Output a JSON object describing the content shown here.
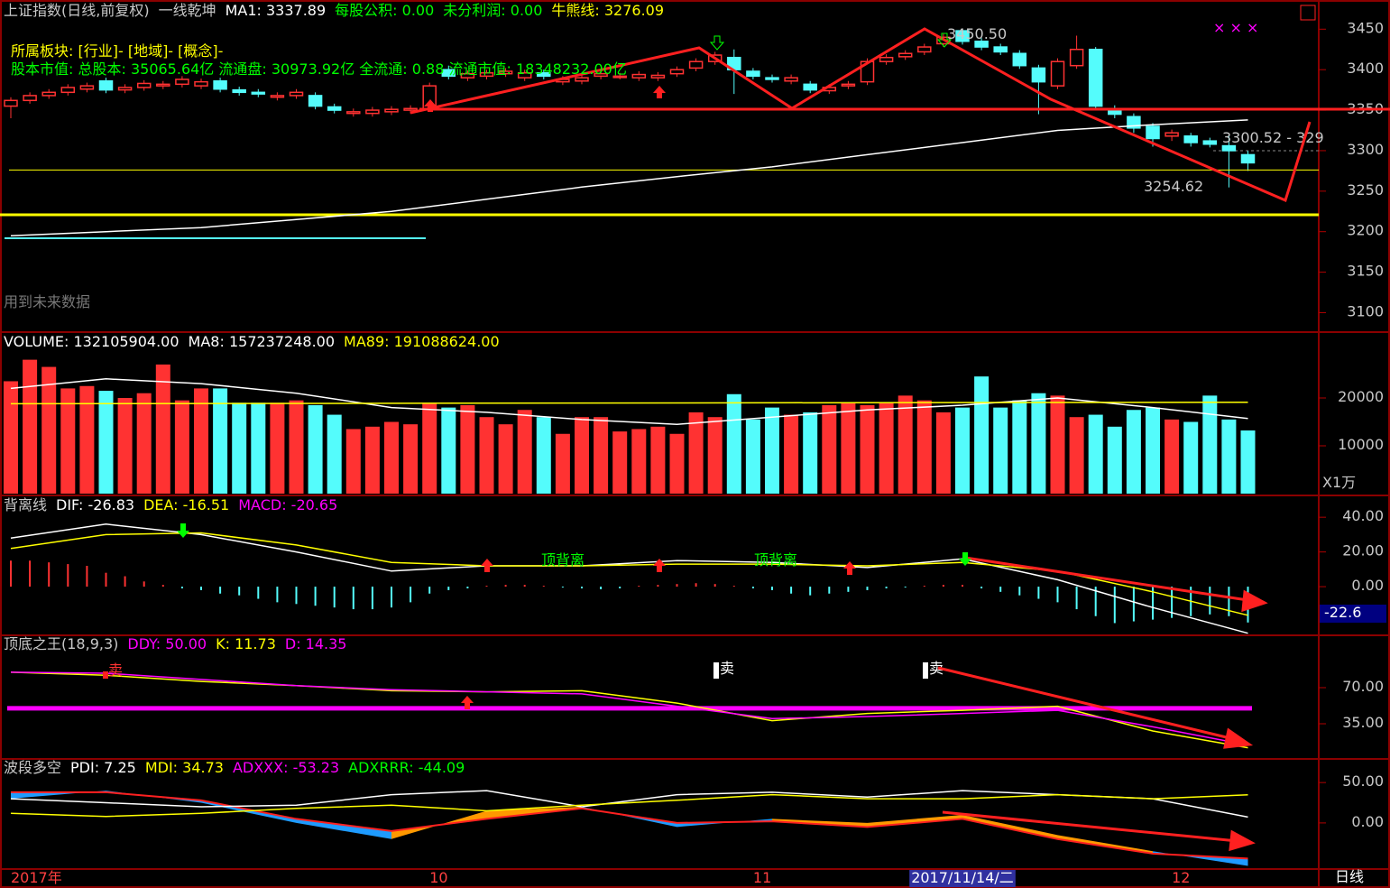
{
  "price_lines": [
    "所属板块: [行业]- [地域]- [概念]-",
    "股本市值: 总股本: 35065.64亿 流通盘: 30973.92亿 全流通: 0.88 流通市值: 18348232.00亿"
  ],
  "future_note": "用到未来数据",
  "footer": "日线",
  "chart_data": [
    {
      "type": "candlestick",
      "header": [
        {
          "text": "上证指数(日线,前复权)",
          "color": "#c8c8c8"
        },
        {
          "text": "一线乾坤",
          "color": "#c8c8c8"
        },
        {
          "text": "MA1: 3337.89",
          "color": "#ffffff"
        },
        {
          "text": "每股公积: 0.00",
          "color": "#00ff00"
        },
        {
          "text": "未分利润: 0.00",
          "color": "#00ff00"
        },
        {
          "text": "牛熊线: 3276.09",
          "color": "#ffff00"
        }
      ],
      "categories": [
        "2017年",
        null,
        null,
        null,
        null,
        null,
        null,
        null,
        null,
        null,
        null,
        null,
        null,
        null,
        null,
        null,
        null,
        null,
        null,
        null,
        null,
        null,
        "10",
        null,
        null,
        null,
        null,
        null,
        null,
        null,
        null,
        null,
        null,
        null,
        null,
        null,
        null,
        null,
        null,
        "11",
        null,
        null,
        null,
        null,
        null,
        null,
        null,
        null,
        null,
        null,
        "2017/11/14/二",
        null,
        null,
        null,
        null,
        null,
        null,
        null,
        null,
        null,
        null,
        "12",
        null,
        null,
        null,
        null
      ],
      "open": [
        3355,
        3362,
        3368,
        3372,
        3376,
        3386,
        3375,
        3378,
        3380,
        3382,
        3380,
        3386,
        3375,
        3372,
        3366,
        3368,
        3368,
        3354,
        3346,
        3346,
        3348,
        3350,
        3352,
        3400,
        3390,
        3392,
        3395,
        3390,
        3396,
        3385,
        3386,
        3392,
        3392,
        3390,
        3390,
        3395,
        3402,
        3410,
        3415,
        3398,
        3390,
        3386,
        3382,
        3374,
        3380,
        3385,
        3410,
        3416,
        3422,
        3432,
        3448,
        3435,
        3428,
        3420,
        3402,
        3380,
        3405,
        3425,
        3352,
        3342,
        3330,
        3318,
        3318,
        3312,
        3306,
        3295
      ],
      "high": [
        3366,
        3372,
        3376,
        3382,
        3384,
        3390,
        3382,
        3387,
        3386,
        3392,
        3389,
        3390,
        3379,
        3376,
        3372,
        3376,
        3372,
        3358,
        3352,
        3354,
        3355,
        3356,
        3384,
        3405,
        3399,
        3400,
        3402,
        3400,
        3400,
        3392,
        3394,
        3399,
        3396,
        3398,
        3397,
        3404,
        3414,
        3422,
        3425,
        3402,
        3394,
        3394,
        3386,
        3382,
        3386,
        3414,
        3419,
        3424,
        3432,
        3444,
        3450.5,
        3439,
        3432,
        3424,
        3406,
        3414,
        3442,
        3428,
        3356,
        3346,
        3334,
        3326,
        3322,
        3316,
        3318,
        3300
      ],
      "low": [
        3340,
        3358,
        3364,
        3368,
        3372,
        3371,
        3371,
        3374,
        3376,
        3378,
        3376,
        3372,
        3368,
        3366,
        3362,
        3364,
        3351,
        3346,
        3342,
        3342,
        3344,
        3346,
        3348,
        3388,
        3386,
        3388,
        3391,
        3386,
        3388,
        3381,
        3382,
        3388,
        3388,
        3386,
        3386,
        3391,
        3398,
        3406,
        3370,
        3388,
        3384,
        3382,
        3371,
        3370,
        3376,
        3381,
        3406,
        3412,
        3418,
        3428,
        3431,
        3424,
        3418,
        3401,
        3345,
        3376,
        3401,
        3351,
        3340,
        3322,
        3305,
        3312,
        3305,
        3304,
        3254.62,
        3275
      ],
      "close": [
        3362,
        3368,
        3372,
        3378,
        3380,
        3375,
        3378,
        3383,
        3382,
        3388,
        3385,
        3376,
        3372,
        3370,
        3368,
        3372,
        3355,
        3350,
        3348,
        3350,
        3351,
        3352,
        3380,
        3392,
        3395,
        3396,
        3398,
        3396,
        3392,
        3388,
        3390,
        3395,
        3392,
        3394,
        3393,
        3400,
        3410,
        3418,
        3400,
        3392,
        3388,
        3390,
        3375,
        3378,
        3382,
        3410,
        3415,
        3420,
        3428,
        3440,
        3435,
        3428,
        3422,
        3405,
        3385,
        3410,
        3425,
        3355,
        3345,
        3328,
        3315,
        3322,
        3310,
        3308,
        3300,
        3285
      ],
      "up_color": "#ff3232",
      "down_color": "#54fcfc",
      "lines": [
        {
          "color": "#ffffff",
          "x": [
            0,
            5,
            10,
            15,
            20,
            25,
            30,
            35,
            40,
            45,
            50,
            55,
            60,
            65
          ],
          "values": [
            3195,
            3200,
            3205,
            3215,
            3225,
            3240,
            3255,
            3268,
            3280,
            3295,
            3310,
            3325,
            3332,
            3337.89
          ]
        }
      ],
      "bull_bear": 3276.09,
      "bull_bear_color": "#ffff00",
      "annotations": [
        "3450.50",
        "3300.52 - 329",
        "3254.62"
      ],
      "ylim": [
        3076,
        3486
      ],
      "yticks": [
        3100,
        3150,
        3200,
        3250,
        3300,
        3350,
        3400,
        3450
      ]
    },
    {
      "type": "bar",
      "header": [
        {
          "text": "VOLUME: 132105904.00",
          "color": "#ffffff"
        },
        {
          "text": "MA8: 157237248.00",
          "color": "#ffffff"
        },
        {
          "text": "MA89: 191088624.00",
          "color": "#ffff00"
        }
      ],
      "values": [
        23500,
        28000,
        26500,
        22000,
        22500,
        21500,
        20000,
        21000,
        27000,
        19500,
        22000,
        22000,
        19000,
        19000,
        19000,
        19500,
        18500,
        16500,
        13500,
        14000,
        15000,
        14500,
        19000,
        18000,
        18500,
        16000,
        14500,
        17500,
        16000,
        12500,
        16000,
        16000,
        13000,
        13500,
        14000,
        12500,
        17000,
        16000,
        20800,
        15500,
        18000,
        16500,
        17000,
        18500,
        19000,
        18500,
        19000,
        20500,
        19500,
        17000,
        18000,
        24500,
        18000,
        19500,
        21000,
        20500,
        16000,
        16500,
        14000,
        17500,
        18000,
        15500,
        15000,
        20500,
        15500,
        13210
      ],
      "lines": [
        {
          "color": "#ffffff",
          "x": [
            0,
            5,
            10,
            15,
            20,
            25,
            30,
            35,
            40,
            45,
            50,
            55,
            60,
            65
          ],
          "values": [
            22000,
            24000,
            23000,
            21000,
            18000,
            17000,
            15500,
            14500,
            16000,
            17500,
            18500,
            20000,
            18000,
            15723.72
          ]
        },
        {
          "color": "#ffff00",
          "x": [
            0,
            65
          ],
          "values": [
            18800,
            19108.86
          ]
        }
      ],
      "unit": "X1万",
      "ylim": [
        0,
        33400
      ],
      "yticks": [
        10000,
        20000
      ]
    },
    {
      "type": "macd",
      "header": [
        {
          "text": "背离线",
          "color": "#c8c8c8"
        },
        {
          "text": "DIF: -26.83",
          "color": "#ffffff"
        },
        {
          "text": "DEA: -16.51",
          "color": "#ffff00"
        },
        {
          "text": "MACD: -20.65",
          "color": "#ff00ff"
        }
      ],
      "values": [
        15,
        15,
        14,
        13,
        12,
        8,
        6,
        3,
        1,
        -1,
        -2,
        -4,
        -5,
        -7,
        -9,
        -10,
        -11,
        -12,
        -13,
        -13,
        -12,
        -9,
        -4,
        -2,
        -1,
        0.5,
        1,
        1,
        0.5,
        -0.5,
        -1,
        -1.5,
        -1,
        0.5,
        1,
        1.5,
        2,
        1.5,
        0.5,
        -1,
        -2,
        -4,
        -5,
        -4,
        -3,
        -2,
        -1,
        -0.5,
        0.5,
        1,
        1,
        -1,
        -3,
        -5,
        -7,
        -9,
        -13,
        -17,
        -21,
        -20,
        -19,
        -18,
        -17,
        -16,
        -17,
        -20.65
      ],
      "up_color": "#ff3232",
      "down_color": "#54fcfc",
      "lines": [
        {
          "color": "#ffffff",
          "x": [
            0,
            5,
            10,
            15,
            20,
            25,
            30,
            35,
            40,
            45,
            50,
            55,
            60,
            65
          ],
          "values": [
            28,
            36,
            30,
            20,
            9,
            12,
            12,
            15,
            14,
            11,
            16,
            4,
            -12,
            -26.83
          ]
        },
        {
          "color": "#ffff00",
          "x": [
            0,
            5,
            10,
            15,
            20,
            25,
            30,
            35,
            40,
            45,
            50,
            55,
            60,
            65
          ],
          "values": [
            22,
            30,
            31,
            24,
            14,
            12,
            12,
            13,
            13,
            12,
            14,
            9,
            -3,
            -16.51
          ]
        }
      ],
      "notes": [
        "顶背离",
        "顶背离"
      ],
      "current": "-22.6",
      "ylim": [
        -27,
        51
      ],
      "yticks": [
        {
          "value": 0,
          "label": "0.00"
        },
        {
          "value": 20,
          "label": "20.00"
        },
        {
          "value": 40,
          "label": "40.00"
        }
      ]
    },
    {
      "type": "kd",
      "header": [
        {
          "text": "顶底之王(18,9,3)",
          "color": "#c8c8c8"
        },
        {
          "text": "DDY: 50.00",
          "color": "#ff00ff"
        },
        {
          "text": "K: 11.73",
          "color": "#ffff00"
        },
        {
          "text": "D: 14.35",
          "color": "#ff00ff"
        }
      ],
      "ddy": 50,
      "ddy_color": "#ff00ff",
      "lines": [
        {
          "color": "#ffff00",
          "x": [
            0,
            5,
            10,
            15,
            20,
            25,
            30,
            35,
            40,
            45,
            50,
            55,
            60,
            65
          ],
          "values": [
            85,
            82,
            76,
            72,
            67,
            66,
            67,
            55,
            38,
            45,
            48,
            52,
            28,
            11.73
          ]
        },
        {
          "color": "#ff00ff",
          "x": [
            0,
            5,
            10,
            15,
            20,
            25,
            30,
            35,
            40,
            45,
            50,
            55,
            60,
            65
          ],
          "values": [
            85,
            84,
            78,
            72,
            68,
            66,
            64,
            52,
            40,
            42,
            45,
            48,
            32,
            14.35
          ]
        }
      ],
      "notes": [
        "卖",
        "卖",
        "卖"
      ],
      "ylim": [
        0,
        119
      ],
      "yticks": [
        {
          "value": 35,
          "label": "35.00"
        },
        {
          "value": 70,
          "label": "70.00"
        }
      ]
    },
    {
      "type": "dmi",
      "header": [
        {
          "text": "波段多空",
          "color": "#c8c8c8"
        },
        {
          "text": "PDI: 7.25",
          "color": "#ffffff"
        },
        {
          "text": "MDI: 34.73",
          "color": "#ffff00"
        },
        {
          "text": "ADXXX: -53.23",
          "color": "#ff00ff"
        },
        {
          "text": "ADXRRR: -44.09",
          "color": "#00ff00"
        }
      ],
      "lines": [
        {
          "color": "#ffffff",
          "x": [
            0,
            5,
            10,
            15,
            20,
            25,
            30,
            35,
            40,
            45,
            50,
            55,
            60,
            65
          ],
          "values": [
            30,
            25,
            20,
            22,
            35,
            40,
            20,
            35,
            38,
            32,
            40,
            35,
            30,
            7.25
          ]
        },
        {
          "color": "#ffff00",
          "x": [
            0,
            5,
            10,
            15,
            20,
            25,
            30,
            35,
            40,
            45,
            50,
            55,
            60,
            65
          ],
          "values": [
            12,
            8,
            12,
            18,
            22,
            15,
            22,
            28,
            35,
            30,
            30,
            35,
            30,
            34.73
          ]
        }
      ],
      "band": {
        "x": [
          0,
          5,
          10,
          15,
          20,
          25,
          30,
          35,
          40,
          45,
          50,
          55,
          60,
          65
        ],
        "a": [
          30,
          40,
          25,
          0,
          -20,
          15,
          20,
          -5,
          5,
          0,
          10,
          -15,
          -35,
          -53.23
        ],
        "b": [
          38,
          38,
          28,
          5,
          -10,
          5,
          18,
          0,
          2,
          -5,
          5,
          -20,
          -38,
          -44.09
        ],
        "above_color": "#ff9900",
        "below_color": "#1e9bff",
        "edge_color": "#ff2020"
      },
      "ylim": [
        -56,
        77
      ],
      "yticks": [
        {
          "value": 0,
          "label": "0.00"
        },
        {
          "value": 50,
          "label": "50.00"
        }
      ]
    }
  ]
}
